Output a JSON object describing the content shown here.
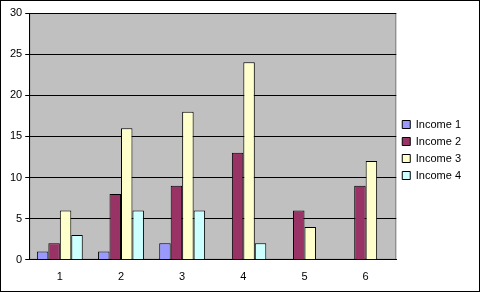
{
  "chart_data": {
    "type": "bar",
    "categories": [
      "1",
      "2",
      "3",
      "4",
      "5",
      "6"
    ],
    "series": [
      {
        "name": "Income 1",
        "color": "#9999FF",
        "values": [
          1,
          1,
          2,
          null,
          null,
          null
        ]
      },
      {
        "name": "Income 2",
        "color": "#993366",
        "values": [
          2,
          8,
          9,
          13,
          6,
          9
        ]
      },
      {
        "name": "Income 3",
        "color": "#FFFFCC",
        "values": [
          6,
          16,
          18,
          24,
          4,
          12
        ]
      },
      {
        "name": "Income 4",
        "color": "#CCFFFF",
        "values": [
          3,
          6,
          6,
          2,
          null,
          null
        ]
      }
    ],
    "ylim": [
      0,
      30
    ],
    "yticks": [
      0,
      5,
      10,
      15,
      20,
      25,
      30
    ],
    "grid": true,
    "legend": "right"
  }
}
